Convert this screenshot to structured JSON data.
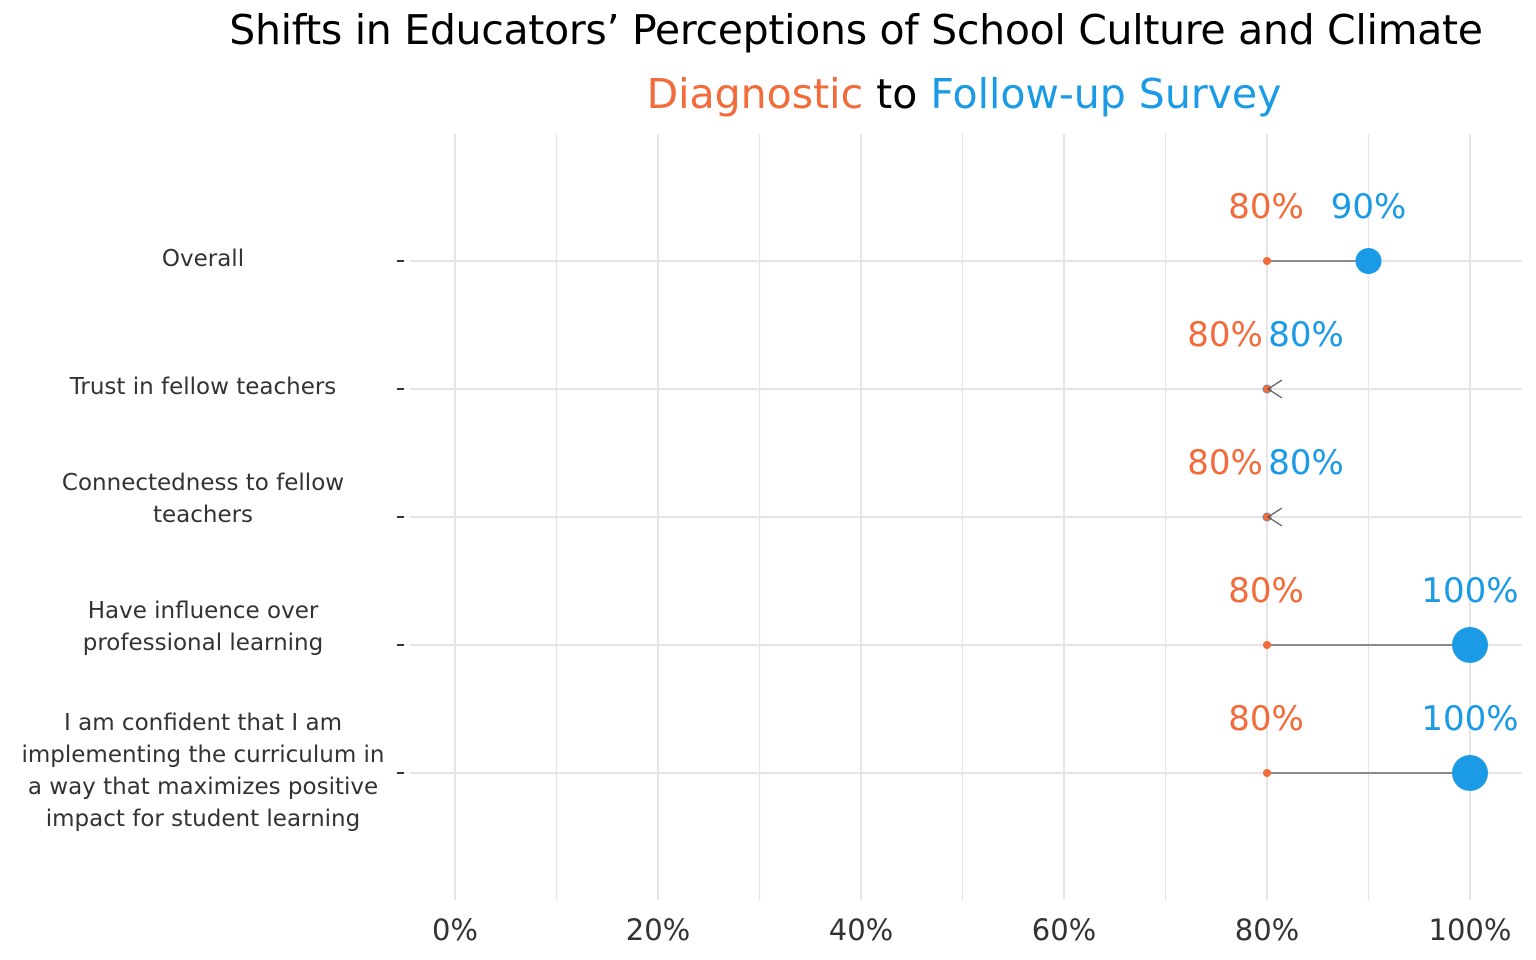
{
  "title": "Shifts in Educators’ Perceptions of School Culture and Climate",
  "subtitle": {
    "part1": "Diagnostic",
    "part2": " to ",
    "part3": "Follow-up Survey"
  },
  "colors": {
    "diagnostic": "#F26B3A",
    "followup": "#1B9AE6",
    "connector": "#555555",
    "grid": "#E5E5E5",
    "axis_text": "#333333"
  },
  "chart_data": {
    "type": "dumbbell",
    "title": "Shifts in Educators’ Perceptions of School Culture and Climate",
    "subtitle": "Diagnostic to Follow-up Survey",
    "xlabel": "",
    "ylabel": "",
    "xlim": [
      0,
      100
    ],
    "grid": true,
    "x_ticks": [
      "0%",
      "20%",
      "40%",
      "60%",
      "80%",
      "100%"
    ],
    "categories": [
      "Overall",
      "Trust in fellow teachers",
      "Connectedness to fellow teachers",
      "Have influence over professional learning",
      "I am confident that I am implementing the curriculum in a way that maximizes positive impact for student learning"
    ],
    "category_lines": [
      [
        "Overall"
      ],
      [
        "Trust in fellow teachers"
      ],
      [
        "Connectedness to fellow",
        "teachers"
      ],
      [
        "Have influence over",
        "professional learning"
      ],
      [
        "I am confident that I am",
        "implementing the curriculum in",
        "a way that maximizes positive",
        "impact for student learning"
      ]
    ],
    "series": [
      {
        "name": "Diagnostic",
        "values": [
          80,
          80,
          80,
          80,
          80
        ],
        "labels": [
          "80%",
          "80%",
          "80%",
          "80%",
          "80%"
        ]
      },
      {
        "name": "Follow-up Survey",
        "values": [
          90,
          80,
          80,
          100,
          100
        ],
        "labels": [
          "90%",
          "80%",
          "80%",
          "100%",
          "100%"
        ]
      }
    ]
  }
}
